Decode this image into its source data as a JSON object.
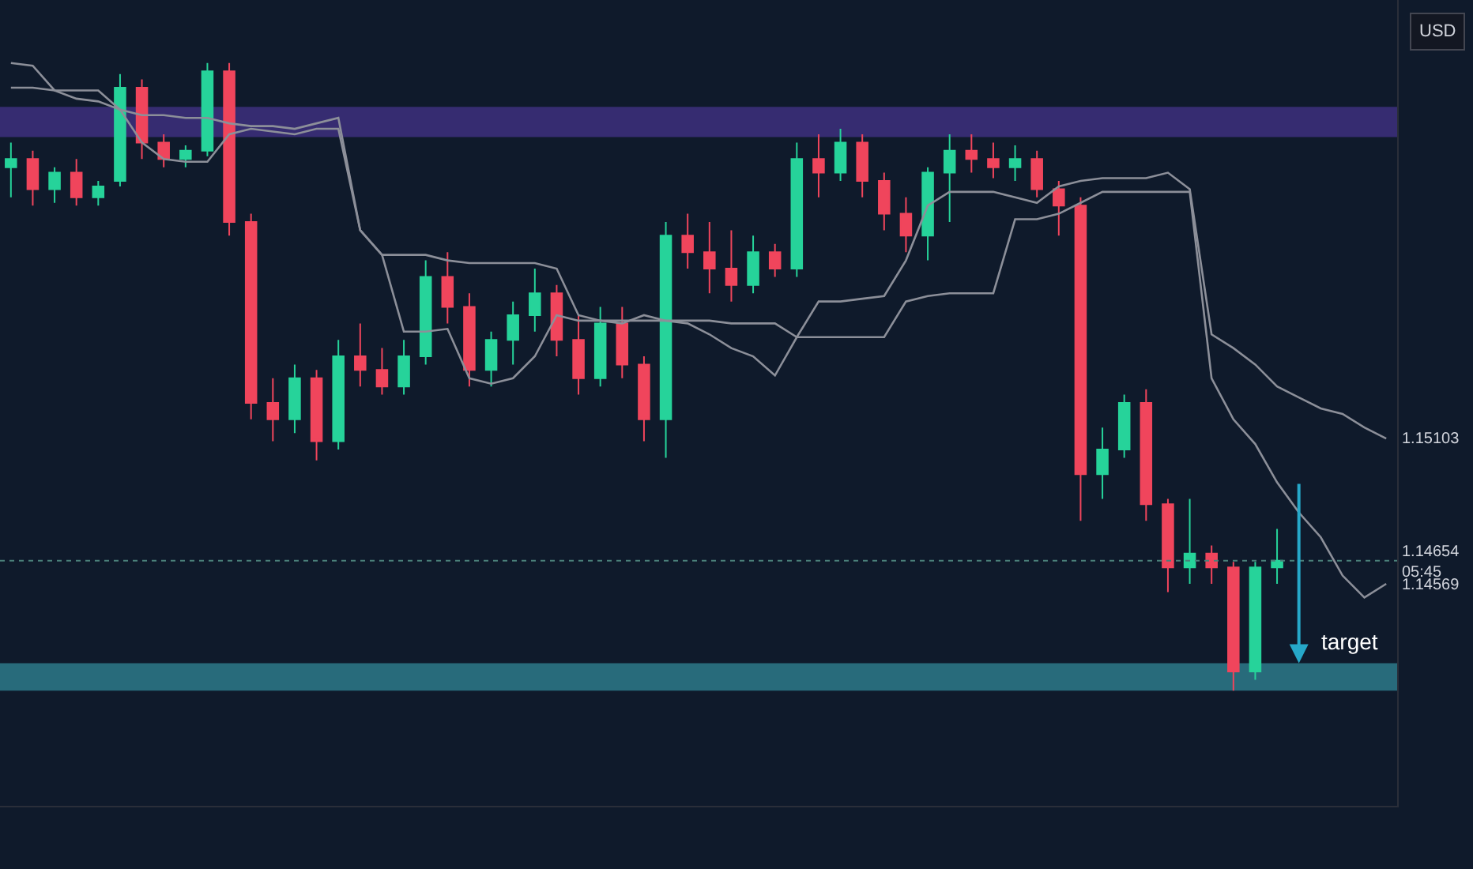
{
  "chart_data": {
    "type": "candlestick",
    "categories": [
      null,
      null,
      null,
      null,
      null,
      null,
      null,
      null,
      null,
      null,
      null,
      null,
      null,
      null,
      null,
      null,
      null,
      null,
      null,
      null,
      null,
      null,
      null,
      null,
      null,
      null,
      null,
      null,
      null,
      null,
      null,
      null,
      null,
      null,
      null,
      null,
      null,
      null,
      null,
      null,
      null,
      null,
      null,
      null,
      null,
      null,
      null,
      null,
      null,
      null,
      null,
      null,
      null,
      null,
      null,
      null,
      null,
      null,
      null,
      null,
      null,
      null,
      null,
      null
    ],
    "ohlc": [
      [
        1.1609,
        1.1618,
        1.1598,
        1.1612
      ],
      [
        1.1612,
        1.1615,
        1.1595,
        1.1601
      ],
      [
        1.1601,
        1.1609,
        1.1596,
        1.1607
      ],
      [
        1.1607,
        1.1612,
        1.1595,
        1.1598
      ],
      [
        1.1598,
        1.1604,
        1.1595,
        1.1602
      ],
      [
        1.1604,
        1.1643,
        1.1602,
        1.1638
      ],
      [
        1.1638,
        1.1641,
        1.1612,
        1.1618
      ],
      [
        1.1618,
        1.1621,
        1.1609,
        1.1612
      ],
      [
        1.1612,
        1.1617,
        1.1609,
        1.1615
      ],
      [
        1.1615,
        1.1647,
        1.1613,
        1.1644
      ],
      [
        1.1644,
        1.1647,
        1.1584,
        1.1589
      ],
      [
        1.1589,
        1.1592,
        1.1517,
        1.1523
      ],
      [
        1.1523,
        1.1532,
        1.1509,
        1.1517
      ],
      [
        1.1517,
        1.1537,
        1.1512,
        1.1532
      ],
      [
        1.1532,
        1.1535,
        1.1502,
        1.1509
      ],
      [
        1.1509,
        1.1546,
        1.1506,
        1.154
      ],
      [
        1.154,
        1.1552,
        1.1529,
        1.1535
      ],
      [
        1.1535,
        1.1543,
        1.1526,
        1.1529
      ],
      [
        1.1529,
        1.1546,
        1.1526,
        1.154
      ],
      [
        1.154,
        1.1575,
        1.1537,
        1.1569
      ],
      [
        1.1569,
        1.1578,
        1.1552,
        1.1558
      ],
      [
        1.1558,
        1.1563,
        1.1529,
        1.1535
      ],
      [
        1.1535,
        1.1549,
        1.1529,
        1.1546
      ],
      [
        1.1546,
        1.156,
        1.1537,
        1.1555
      ],
      [
        1.1555,
        1.1572,
        1.1549,
        1.1563
      ],
      [
        1.1563,
        1.1566,
        1.154,
        1.1546
      ],
      [
        1.1546,
        1.1555,
        1.1526,
        1.1532
      ],
      [
        1.1532,
        1.1558,
        1.1529,
        1.1552
      ],
      [
        1.1552,
        1.1558,
        1.1532,
        1.1537
      ],
      [
        1.1537,
        1.154,
        1.1509,
        1.1517
      ],
      [
        1.1517,
        1.1589,
        1.1503,
        1.1584
      ],
      [
        1.1584,
        1.1592,
        1.1572,
        1.1578
      ],
      [
        1.1578,
        1.1589,
        1.1563,
        1.1572
      ],
      [
        1.1572,
        1.1586,
        1.156,
        1.1566
      ],
      [
        1.1566,
        1.1584,
        1.1563,
        1.1578
      ],
      [
        1.1578,
        1.1581,
        1.1569,
        1.1572
      ],
      [
        1.1572,
        1.1618,
        1.1569,
        1.1612
      ],
      [
        1.1612,
        1.1621,
        1.1598,
        1.1607
      ],
      [
        1.1607,
        1.1623,
        1.1604,
        1.1618
      ],
      [
        1.1618,
        1.1621,
        1.1598,
        1.1604
      ],
      [
        1.1604,
        1.1607,
        1.1586,
        1.1592
      ],
      [
        1.1592,
        1.1598,
        1.1578,
        1.1584
      ],
      [
        1.1584,
        1.1609,
        1.1575,
        1.1607
      ],
      [
        1.1607,
        1.1621,
        1.1589,
        1.1615
      ],
      [
        1.1615,
        1.1621,
        1.1607,
        1.1612
      ],
      [
        1.1612,
        1.1618,
        1.1605,
        1.1609
      ],
      [
        1.1609,
        1.1617,
        1.1604,
        1.1612
      ],
      [
        1.1612,
        1.1615,
        1.1598,
        1.1601
      ],
      [
        1.1601,
        1.1604,
        1.1584,
        1.1595
      ],
      [
        1.1595,
        1.1598,
        1.148,
        1.1497
      ],
      [
        1.1497,
        1.1514,
        1.1488,
        1.1506
      ],
      [
        1.1506,
        1.1526,
        1.1503,
        1.1523
      ],
      [
        1.1523,
        1.1528,
        1.148,
        1.1486
      ],
      [
        1.1486,
        1.1488,
        1.1454,
        1.1463
      ],
      [
        1.1463,
        1.1488,
        1.1457,
        1.1468
      ],
      [
        1.1468,
        1.1471,
        1.1457,
        1.1463
      ],
      [
        1.1463,
        1.1465,
        1.1418,
        1.1425
      ],
      [
        1.1425,
        1.1465,
        1.1422,
        1.1463
      ],
      [
        1.1463,
        1.1477,
        1.1457,
        1.14654
      ],
      null,
      null,
      null,
      null,
      null
    ],
    "colors": [
      "#26d39a",
      "#f0455c",
      "#26d39a",
      "#f0455c",
      "#26d39a",
      "#26d39a",
      "#f0455c",
      "#f0455c",
      "#26d39a",
      "#26d39a",
      "#f0455c",
      "#f0455c",
      "#f0455c",
      "#26d39a",
      "#f0455c",
      "#26d39a",
      "#f0455c",
      "#f0455c",
      "#26d39a",
      "#26d39a",
      "#f0455c",
      "#f0455c",
      "#26d39a",
      "#26d39a",
      "#26d39a",
      "#f0455c",
      "#f0455c",
      "#26d39a",
      "#f0455c",
      "#f0455c",
      "#26d39a",
      "#f0455c",
      "#f0455c",
      "#f0455c",
      "#26d39a",
      "#f0455c",
      "#26d39a",
      "#f0455c",
      "#26d39a",
      "#f0455c",
      "#f0455c",
      "#f0455c",
      "#26d39a",
      "#26d39a",
      "#f0455c",
      "#f0455c",
      "#26d39a",
      "#f0455c",
      "#f0455c",
      "#f0455c",
      "#26d39a",
      "#26d39a",
      "#f0455c",
      "#f0455c",
      "#26d39a",
      "#f0455c",
      "#f0455c",
      "#26d39a",
      "#26d39a",
      null,
      null,
      null,
      null,
      null
    ],
    "series": [
      {
        "type": "line",
        "color": "#8c8f99",
        "values": [
          1.1647,
          1.1646,
          1.1637,
          1.1637,
          1.1637,
          1.163,
          1.1628,
          1.1628,
          1.1627,
          1.1627,
          1.1625,
          1.1624,
          1.1624,
          1.1623,
          1.1625,
          1.1627,
          1.1586,
          1.1577,
          1.1577,
          1.1577,
          1.1575,
          1.1574,
          1.1574,
          1.1574,
          1.1574,
          1.1572,
          1.1555,
          1.1553,
          1.1553,
          1.1553,
          1.1553,
          1.1553,
          1.1553,
          1.1552,
          1.1552,
          1.1552,
          1.1547,
          1.156,
          1.156,
          1.1561,
          1.1562,
          1.1575,
          1.1595,
          1.16,
          1.16,
          1.16,
          1.1598,
          1.1596,
          1.1602,
          1.1604,
          1.1605,
          1.1605,
          1.1605,
          1.1607,
          1.1601,
          1.1548,
          1.1543,
          1.1537,
          1.1529,
          1.1525,
          1.1521,
          1.1519,
          1.1514,
          1.151
        ]
      },
      {
        "type": "line",
        "color": "#8c8f99",
        "values": [
          1.1638,
          1.1638,
          1.1637,
          1.1634,
          1.1633,
          1.163,
          1.1618,
          1.1612,
          1.1611,
          1.1611,
          1.1621,
          1.1623,
          1.1622,
          1.1621,
          1.1623,
          1.1623,
          1.1586,
          1.1577,
          1.1549,
          1.1549,
          1.155,
          1.1532,
          1.153,
          1.1532,
          1.154,
          1.1555,
          1.1553,
          1.1553,
          1.1552,
          1.1555,
          1.1553,
          1.1552,
          1.1548,
          1.1543,
          1.154,
          1.1533,
          1.1547,
          1.1547,
          1.1547,
          1.1547,
          1.1547,
          1.156,
          1.1562,
          1.1563,
          1.1563,
          1.1563,
          1.159,
          1.159,
          1.1592,
          1.1596,
          1.16,
          1.16,
          1.16,
          1.16,
          1.16,
          1.1532,
          1.1517,
          1.1508,
          1.1494,
          1.1483,
          1.1474,
          1.146,
          1.1452,
          1.1457
        ]
      }
    ],
    "ylim": [
      1.1376,
      1.167
    ],
    "yticks": [
      1.15103,
      {
        "value": 1.14654,
        "label": "1.14654\n05:45"
      },
      1.14569
    ],
    "bands": [
      {
        "axis": "y",
        "from": 1.162,
        "to": 1.1631,
        "color": "#3b2f79"
      },
      {
        "axis": "y",
        "from": 1.1418,
        "to": 1.1428,
        "color": "#2b7484"
      }
    ],
    "ref_lines": [
      {
        "axis": "y",
        "value": 1.14654,
        "color": "#4a7f79",
        "line_style": "dotted"
      }
    ],
    "annotations": [
      "USD",
      {
        "text": "target",
        "y": 1.1428
      }
    ],
    "grid": false,
    "tick_labels": "y",
    "marker": "none"
  }
}
